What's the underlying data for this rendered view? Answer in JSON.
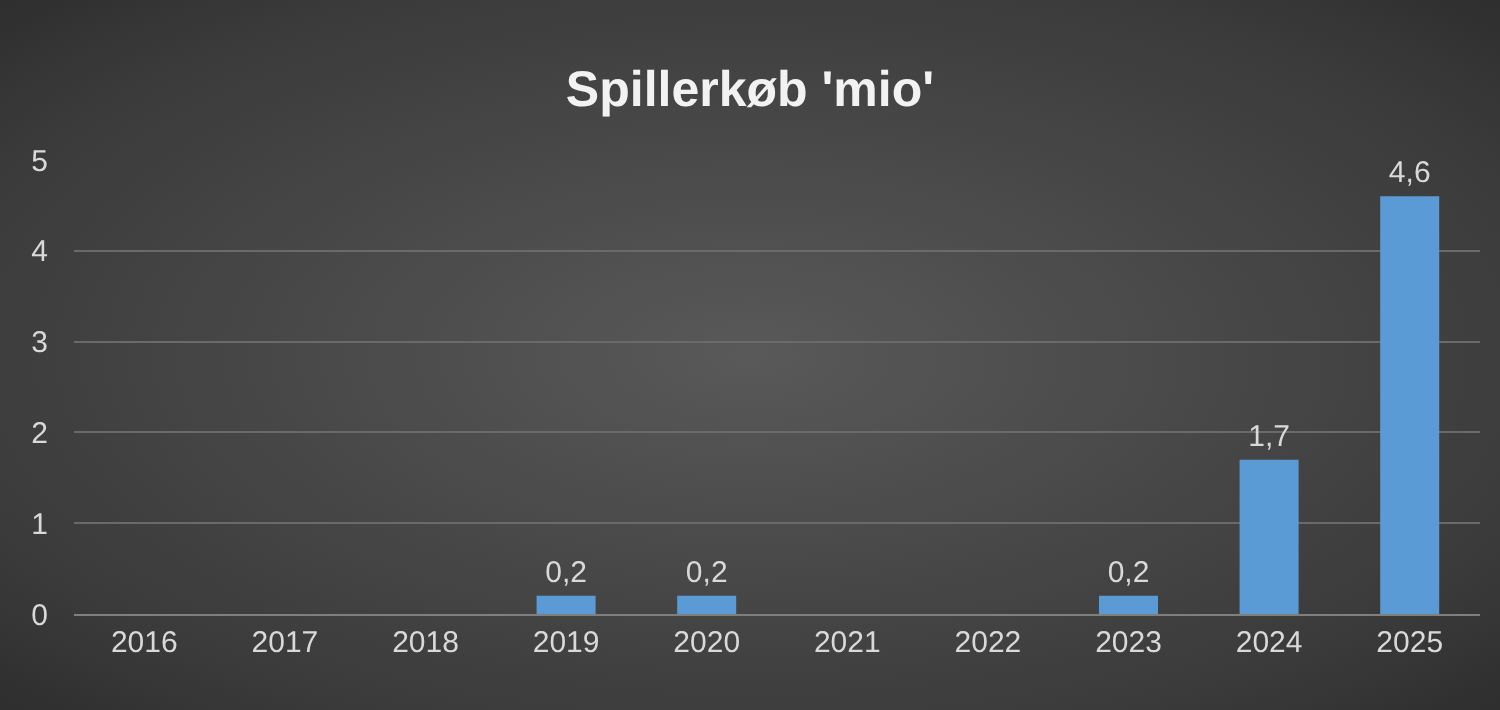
{
  "chart_data": {
    "type": "bar",
    "title": "Spillerkøb 'mio'",
    "categories": [
      "2016",
      "2017",
      "2018",
      "2019",
      "2020",
      "2021",
      "2022",
      "2023",
      "2024",
      "2025"
    ],
    "values": [
      0,
      0,
      0,
      0.2,
      0.2,
      0,
      0,
      0.2,
      1.7,
      4.6
    ],
    "value_labels": [
      null,
      null,
      null,
      "0,2",
      "0,2",
      null,
      null,
      "0,2",
      "1,7",
      "4,6"
    ],
    "color": "#5b9bd5",
    "ylim": [
      0,
      5
    ],
    "yticks": [
      0,
      1,
      2,
      3,
      4,
      5
    ],
    "grid": "y",
    "legend": false
  }
}
